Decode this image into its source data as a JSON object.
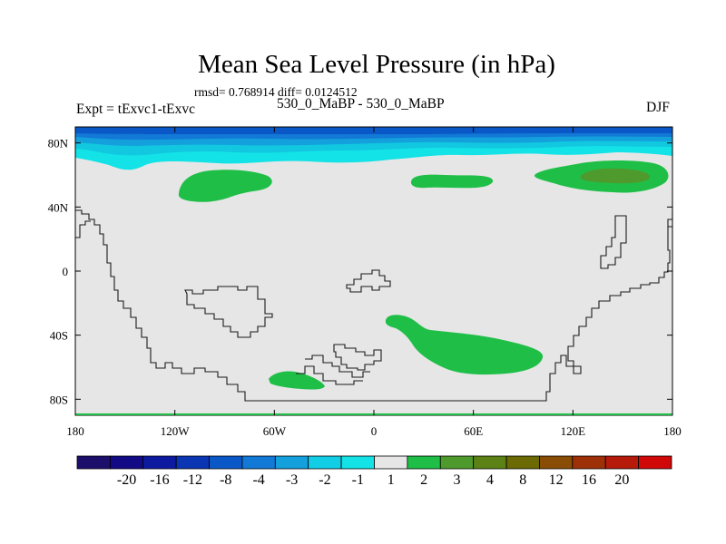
{
  "chart_data": {
    "type": "heatmap",
    "title": "Mean Sea Level Pressure (in hPa)",
    "stats_text": "rmsd= 0.768914 diff= 0.0124512",
    "left_label": "Expt = tExvc1-tExvc",
    "center_label": "530_0_MaBP - 530_0_MaBP",
    "right_label": "DJF",
    "x_ticks": [
      "180",
      "120W",
      "60W",
      "0",
      "60E",
      "120E",
      "180"
    ],
    "y_ticks": [
      "80N",
      "40N",
      "0",
      "40S",
      "80S"
    ],
    "colorbar_labels": [
      "-20",
      "-16",
      "-12",
      "-8",
      "-4",
      "-3",
      "-2",
      "-1",
      "1",
      "2",
      "3",
      "4",
      "8",
      "12",
      "16",
      "20"
    ],
    "colorbar_colors": [
      "#1b0f6b",
      "#130a86",
      "#0d1aa0",
      "#0a35b3",
      "#0a58c8",
      "#1279d6",
      "#13a0dc",
      "#12cde6",
      "#13e3e6",
      "#e6e6e6",
      "#1fbf47",
      "#4f9a2d",
      "#5c8216",
      "#6b6a05",
      "#8a4d06",
      "#9e3007",
      "#b51a0a",
      "#d10808"
    ],
    "x_range": [
      -180,
      180
    ],
    "y_range": [
      -90,
      90
    ],
    "background_color": "#e6e6e6"
  }
}
